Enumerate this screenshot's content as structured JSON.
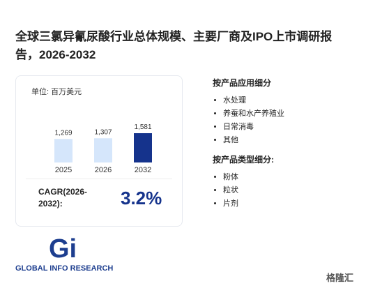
{
  "header": {
    "title": "全球三氯异氰尿酸行业总体规模、主要厂商及IPO上市调研报告，2026-2032"
  },
  "chart": {
    "type": "bar",
    "unit": "单位: 百万美元",
    "categories": [
      "2025",
      "2026",
      "2032"
    ],
    "values": [
      1269,
      1307,
      1581
    ],
    "value_labels": [
      "1,269",
      "1,307",
      "1,581"
    ],
    "colors": [
      "#d5e6fb",
      "#d5e6fb",
      "#15338c"
    ]
  },
  "cagr": {
    "label": "CAGR(2026-2032):",
    "value": "3.2%"
  },
  "segments": [
    {
      "title": "按产品应用细分",
      "items": [
        "水处理",
        "养蚕和水产养殖业",
        "日常消毒",
        "其他"
      ]
    },
    {
      "title": "按产品类型细分:",
      "items": [
        "粉体",
        "粒状",
        "片剂"
      ]
    }
  ],
  "logo": {
    "mark": "Gi",
    "text": "GLOBAL INFO RESEARCH"
  },
  "watermark": "格隆汇"
}
